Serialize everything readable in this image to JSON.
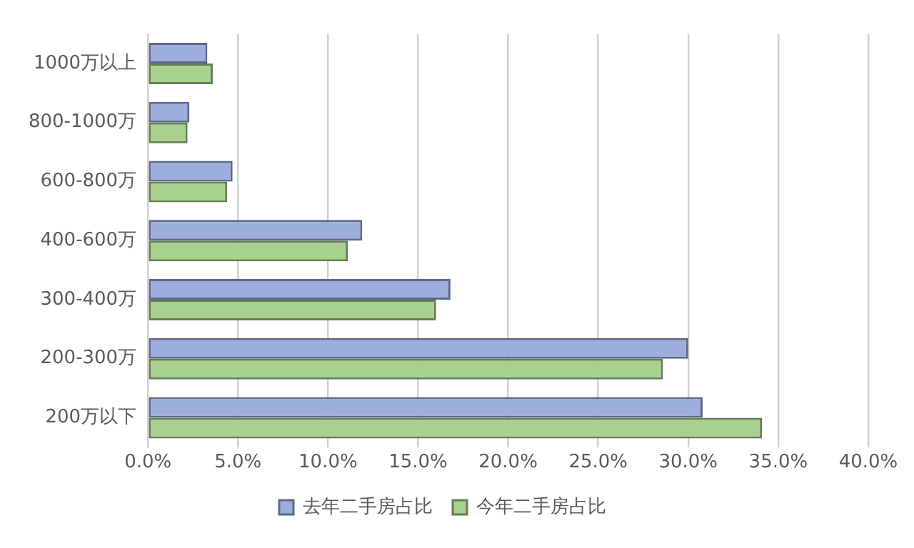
{
  "chart_data": {
    "type": "bar",
    "orientation": "horizontal",
    "categories": [
      "1000万以上",
      "800-1000万",
      "600-800万",
      "400-600万",
      "300-400万",
      "200-300万",
      "200万以下"
    ],
    "series": [
      {
        "name": "去年二手房占比",
        "color": "#9dadde",
        "values": [
          3.3,
          2.3,
          4.7,
          11.9,
          16.8,
          30.0,
          30.8
        ]
      },
      {
        "name": "今年二手房占比",
        "color": "#a9d18e",
        "values": [
          3.6,
          2.2,
          4.4,
          11.1,
          16.0,
          28.6,
          34.1
        ]
      }
    ],
    "xlim": [
      0,
      40
    ],
    "xticks": [
      {
        "value": 0,
        "label": "0.0%"
      },
      {
        "value": 5,
        "label": "5.0%"
      },
      {
        "value": 10,
        "label": "10.0%"
      },
      {
        "value": 15,
        "label": "15.0%"
      },
      {
        "value": 20,
        "label": "20.0%"
      },
      {
        "value": 25,
        "label": "25.0%"
      },
      {
        "value": 30,
        "label": "30.0%"
      },
      {
        "value": 35,
        "label": "35.0%"
      },
      {
        "value": 40,
        "label": "40.0%"
      }
    ],
    "grid": "x",
    "legend": "bottom"
  }
}
